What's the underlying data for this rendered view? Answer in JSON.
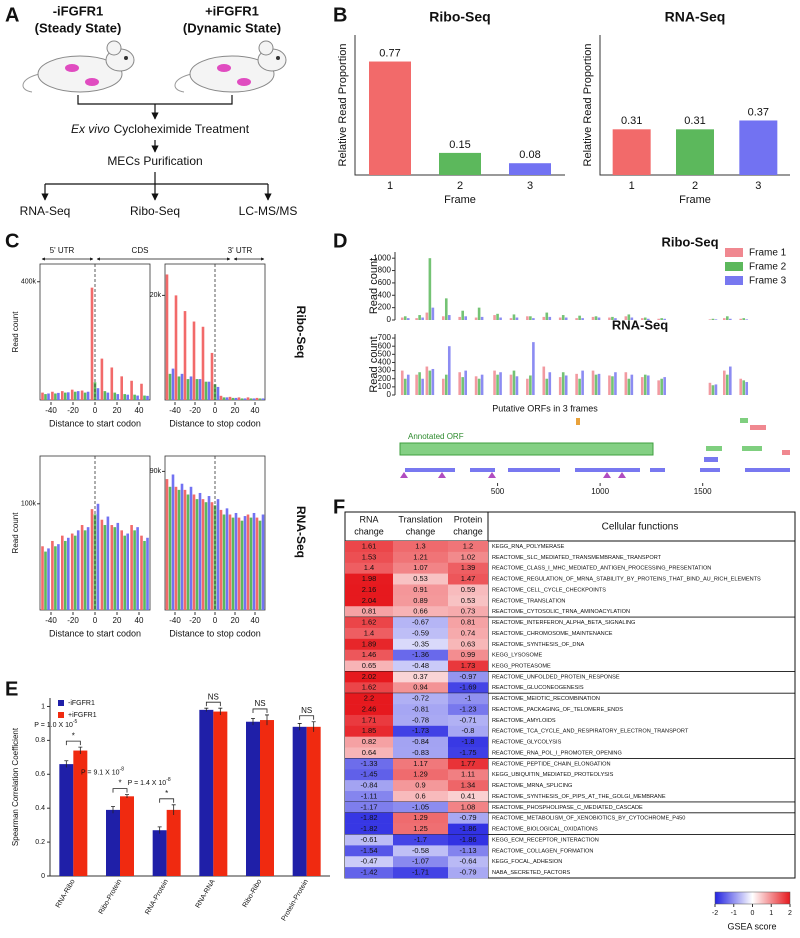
{
  "panel_labels": [
    "A",
    "B",
    "C",
    "D",
    "E",
    "F"
  ],
  "panel_a": {
    "group_1": [
      "-iFGFR1",
      "(Steady State)"
    ],
    "group_2": [
      "+iFGFR1",
      "(Dynamic State)"
    ],
    "treatment": [
      "Ex vivo",
      "Cycloheximide Treatment"
    ],
    "purification": "MECs Purification",
    "assays": [
      "RNA-Seq",
      "Ribo-Seq",
      "LC-MS/MS"
    ]
  },
  "panel_c": {
    "regions": [
      "5' UTR",
      "CDS",
      "3' UTR"
    ],
    "row_labels": [
      "Ribo-Seq",
      "RNA-Seq"
    ]
  },
  "panel_d": {
    "orf_label": "Putative ORFs in 3 frames",
    "annotated_label": "Annotated ORF"
  },
  "chart_data": [
    {
      "type": "bar",
      "title": "Ribo-Seq",
      "ylabel": "Relative Read Proportion",
      "xlabel": "Frame",
      "categories": [
        "1",
        "2",
        "3"
      ],
      "values": [
        0.77,
        0.15,
        0.08
      ],
      "colors": [
        "#f26a6a",
        "#5cb85c",
        "#7272f2"
      ],
      "ylim": [
        0,
        0.95
      ]
    },
    {
      "type": "bar",
      "title": "RNA-Seq",
      "ylabel": "Relative Read Proportion",
      "xlabel": "Frame",
      "categories": [
        "1",
        "2",
        "3"
      ],
      "values": [
        0.31,
        0.31,
        0.37
      ],
      "colors": [
        "#f26a6a",
        "#5cb85c",
        "#7272f2"
      ],
      "ylim": [
        0,
        0.95
      ]
    },
    {
      "type": "frame_bars",
      "ylabel": "Read count",
      "xlabel": "Distance to start codon",
      "xlim": [
        -50,
        50
      ],
      "xticks": [
        -40,
        -20,
        0,
        20,
        40
      ],
      "ylim": [
        0,
        460000
      ],
      "yticks": [
        {
          "value": 400000,
          "label": "400k"
        }
      ],
      "x": [
        -45,
        -36,
        -27,
        -18,
        -9,
        0,
        9,
        18,
        27,
        36,
        45
      ],
      "series": [
        {
          "color": "#f26a6a",
          "values": [
            25000,
            28000,
            30000,
            35000,
            32000,
            380000,
            140000,
            110000,
            80000,
            65000,
            55000
          ]
        },
        {
          "color": "#5cb85c",
          "values": [
            20000,
            22000,
            25000,
            28000,
            25000,
            60000,
            30000,
            25000,
            20000,
            18000,
            15000
          ]
        },
        {
          "color": "#7272f2",
          "values": [
            22000,
            24000,
            26000,
            30000,
            28000,
            40000,
            25000,
            20000,
            18000,
            15000,
            14000
          ]
        }
      ]
    },
    {
      "type": "frame_bars",
      "xlabel": "Distance to stop codon",
      "xlim": [
        -50,
        50
      ],
      "xticks": [
        -40,
        -20,
        0,
        20,
        40
      ],
      "ylim": [
        0,
        26000
      ],
      "yticks": [
        {
          "value": 20000,
          "label": "20k"
        }
      ],
      "x": [
        -45,
        -36,
        -27,
        -18,
        -9,
        0,
        9,
        18,
        27,
        36,
        45
      ],
      "series": [
        {
          "color": "#f26a6a",
          "values": [
            24000,
            20000,
            17000,
            15000,
            14000,
            9000,
            800,
            600,
            500,
            500,
            400
          ]
        },
        {
          "color": "#5cb85c",
          "values": [
            5000,
            4500,
            4000,
            4000,
            3500,
            3000,
            500,
            400,
            300,
            300,
            300
          ]
        },
        {
          "color": "#7272f2",
          "values": [
            6000,
            5000,
            4500,
            4000,
            3500,
            2500,
            500,
            400,
            300,
            300,
            300
          ]
        }
      ]
    },
    {
      "type": "frame_bars",
      "ylabel": "Read count",
      "xlabel": "Distance to start codon",
      "xlim": [
        -50,
        50
      ],
      "xticks": [
        -40,
        -20,
        0,
        20,
        40
      ],
      "ylim": [
        0,
        145000
      ],
      "yticks": [
        {
          "value": 100000,
          "label": "100k"
        }
      ],
      "x": [
        -45,
        -36,
        -27,
        -18,
        -9,
        0,
        9,
        18,
        27,
        36,
        45
      ],
      "series": [
        {
          "color": "#f26a6a",
          "values": [
            60000,
            65000,
            70000,
            72000,
            80000,
            95000,
            85000,
            80000,
            75000,
            80000,
            70000
          ]
        },
        {
          "color": "#5cb85c",
          "values": [
            55000,
            60000,
            65000,
            70000,
            75000,
            90000,
            80000,
            78000,
            70000,
            75000,
            65000
          ]
        },
        {
          "color": "#7272f2",
          "values": [
            58000,
            62000,
            68000,
            75000,
            78000,
            100000,
            88000,
            82000,
            72000,
            78000,
            68000
          ]
        }
      ]
    },
    {
      "type": "frame_bars",
      "xlabel": "Distance to stop codon",
      "xlim": [
        -50,
        50
      ],
      "xticks": [
        -40,
        -20,
        0,
        20,
        40
      ],
      "ylim": [
        0,
        100000
      ],
      "yticks": [
        {
          "value": 90000,
          "label": "90k"
        }
      ],
      "x": [
        -45,
        -36,
        -27,
        -18,
        -9,
        0,
        9,
        18,
        27,
        36,
        45
      ],
      "series": [
        {
          "color": "#f26a6a",
          "values": [
            85000,
            80000,
            78000,
            75000,
            72000,
            70000,
            65000,
            62000,
            60000,
            62000,
            60000
          ]
        },
        {
          "color": "#5cb85c",
          "values": [
            80000,
            78000,
            75000,
            72000,
            70000,
            68000,
            62000,
            60000,
            58000,
            60000,
            58000
          ]
        },
        {
          "color": "#7272f2",
          "values": [
            88000,
            82000,
            80000,
            76000,
            74000,
            72000,
            66000,
            63000,
            61000,
            63000,
            62000
          ]
        }
      ]
    },
    {
      "type": "track",
      "title": "Ribo-Seq",
      "ylabel": "Read count",
      "legend": "upper right",
      "xlim": [
        0,
        1950
      ],
      "ylim": [
        0,
        1100
      ],
      "yticks": [
        0,
        200,
        400,
        600,
        800,
        1000
      ],
      "x": [
        50,
        120,
        170,
        250,
        330,
        410,
        500,
        580,
        660,
        740,
        820,
        900,
        980,
        1060,
        1140,
        1220,
        1300,
        1550,
        1620,
        1700
      ],
      "series": [
        {
          "name": "Frame 1",
          "color": "#f08890",
          "values": [
            40,
            30,
            120,
            60,
            50,
            40,
            80,
            30,
            60,
            50,
            40,
            30,
            50,
            40,
            60,
            30,
            20,
            10,
            30,
            20
          ]
        },
        {
          "name": "Frame 2",
          "color": "#5cb85c",
          "values": [
            60,
            80,
            1000,
            350,
            150,
            200,
            100,
            90,
            60,
            120,
            80,
            70,
            60,
            50,
            90,
            40,
            30,
            20,
            60,
            30
          ]
        },
        {
          "name": "Frame 3",
          "color": "#7878f0",
          "values": [
            30,
            40,
            200,
            80,
            60,
            50,
            40,
            40,
            30,
            50,
            40,
            30,
            40,
            30,
            40,
            20,
            20,
            10,
            20,
            10
          ]
        }
      ]
    },
    {
      "type": "track",
      "title": "RNA-Seq",
      "ylabel": "Read count",
      "xlim": [
        0,
        1950
      ],
      "xticks": [
        500,
        1000,
        1500
      ],
      "ylim": [
        0,
        750
      ],
      "yticks": [
        0,
        100,
        200,
        300,
        400,
        500,
        600,
        700
      ],
      "x": [
        50,
        120,
        170,
        250,
        330,
        410,
        500,
        580,
        660,
        740,
        820,
        900,
        980,
        1060,
        1140,
        1220,
        1300,
        1550,
        1620,
        1700
      ],
      "series": [
        {
          "color": "#f08890",
          "values": [
            300,
            250,
            350,
            200,
            280,
            230,
            300,
            250,
            200,
            350,
            220,
            260,
            300,
            240,
            280,
            220,
            180,
            150,
            300,
            200
          ]
        },
        {
          "color": "#5cb85c",
          "values": [
            200,
            280,
            300,
            250,
            220,
            200,
            250,
            300,
            240,
            200,
            280,
            200,
            250,
            230,
            200,
            250,
            200,
            120,
            250,
            180
          ]
        },
        {
          "color": "#7878f0",
          "values": [
            250,
            200,
            320,
            600,
            300,
            250,
            280,
            230,
            650,
            280,
            240,
            300,
            260,
            280,
            250,
            240,
            220,
            130,
            350,
            160
          ]
        }
      ]
    },
    {
      "type": "grouped_bar",
      "ylabel": "Spearman Correlation Coefficient",
      "categories": [
        "RNA-Ribo",
        "Ribo-Protein",
        "RNA-Protein",
        "RNA-RNA",
        "Ribo-Ribo",
        "Protein-Protein"
      ],
      "ylim": [
        0,
        1.05
      ],
      "yticks": [
        0,
        0.2,
        0.4,
        0.6,
        0.8,
        1
      ],
      "series": [
        {
          "name": "-iFGFR1",
          "color": "#1f1fa8",
          "values": [
            0.66,
            0.39,
            0.27,
            0.98,
            0.91,
            0.88
          ],
          "errors": [
            0.02,
            0.02,
            0.02,
            0.01,
            0.02,
            0.02
          ]
        },
        {
          "name": "+iFGFR1",
          "color": "#f02a10",
          "values": [
            0.74,
            0.47,
            0.39,
            0.97,
            0.92,
            0.88
          ],
          "errors": [
            0.02,
            0.01,
            0.03,
            0.02,
            0.03,
            0.03
          ]
        }
      ],
      "significance": [
        "*",
        "*",
        "*",
        "NS",
        "NS",
        "NS"
      ],
      "p_values": [
        [
          "P = 1.0 X 10",
          "-5"
        ],
        [
          "P = 9.1 X 10",
          "-8"
        ],
        [
          "P = 1.4 X 10",
          "-8"
        ]
      ]
    }
  ],
  "panel_f": {
    "headers": [
      [
        "RNA",
        "change"
      ],
      [
        "Translation",
        "change"
      ],
      [
        "Protein",
        "change"
      ],
      "Cellular functions"
    ],
    "groups": [
      [
        [
          1.61,
          1.3,
          1.2,
          "KEGG_RNA_POLYMERASE"
        ],
        [
          1.53,
          1.21,
          1.02,
          "REACTOME_SLC_MEDIATED_TRANSMEMBRANE_TRANSPORT"
        ],
        [
          1.4,
          1.07,
          1.39,
          "REACTOME_CLASS_I_MHC_MEDIATED_ANTIGEN_PROCESSING_PRESENTATION"
        ],
        [
          1.98,
          0.53,
          1.47,
          "REACTOME_REGULATION_OF_MRNA_STABILITY_BY_PROTEINS_THAT_BIND_AU_RICH_ELEMENTS"
        ],
        [
          2.16,
          0.91,
          0.59,
          "REACTOME_CELL_CYCLE_CHECKPOINTS"
        ],
        [
          2.04,
          0.89,
          0.53,
          "REACTOME_TRANSLATION"
        ],
        [
          0.81,
          0.66,
          0.73,
          "REACTOME_CYTOSOLIC_TRNA_AMINOACYLATION"
        ]
      ],
      [
        [
          1.62,
          -0.67,
          0.81,
          "REACTOME_INTERFERON_ALPHA_BETA_SIGNALING"
        ],
        [
          1.4,
          -0.59,
          0.74,
          "REACTOME_CHROMOSOME_MAINTENANCE"
        ],
        [
          1.89,
          -0.35,
          0.63,
          "REACTOME_SYNTHESIS_OF_DNA"
        ],
        [
          1.46,
          -1.36,
          0.99,
          "KEGG_LYSOSOME"
        ],
        [
          0.65,
          -0.48,
          1.73,
          "KEGG_PROTEASOME"
        ]
      ],
      [
        [
          2.02,
          0.37,
          -0.97,
          "REACTOME_UNFOLDED_PROTEIN_RESPONSE"
        ],
        [
          1.62,
          0.94,
          -1.69,
          "REACTOME_GLUCONEOGENESIS"
        ]
      ],
      [
        [
          2.2,
          -0.72,
          -1,
          "REACTOME_MEIOTIC_RECOMBINATION"
        ],
        [
          2.46,
          -0.81,
          -1.23,
          "REACTOME_PACKAGING_OF_TELOMERE_ENDS"
        ],
        [
          1.71,
          -0.78,
          -0.71,
          "REACTOME_AMYLOIDS"
        ],
        [
          1.85,
          -1.73,
          -0.8,
          "REACTOME_TCA_CYCLE_AND_RESPIRATORY_ELECTRON_TRANSPORT"
        ],
        [
          0.82,
          -0.84,
          -1.8,
          "REACTOME_GLYCOLYSIS"
        ],
        [
          0.64,
          -0.83,
          -1.75,
          "REACTOME_RNA_POL_I_PROMOTER_OPENING"
        ]
      ],
      [
        [
          -1.33,
          1.17,
          1.77,
          "REACTOME_PEPTIDE_CHAIN_ELONGATION"
        ],
        [
          -1.45,
          1.29,
          1.11,
          "KEGG_UBIQUITIN_MEDIATED_PROTEOLYSIS"
        ],
        [
          -0.84,
          0.9,
          1.34,
          "REACTOME_MRNA_SPLICING"
        ],
        [
          -1.11,
          0.6,
          0.41,
          "REACTOME_SYNTHESIS_OF_PIPS_AT_THE_GOLGI_MEMBRANE"
        ]
      ],
      [
        [
          -1.17,
          -1.05,
          1.08,
          "REACTOME_PHOSPHOLIPASE_C_MEDIATED_CASCADE"
        ]
      ],
      [
        [
          -1.82,
          1.29,
          -0.79,
          "REACTOME_METABOLISM_OF_XENOBIOTICS_BY_CYTOCHROME_P450"
        ],
        [
          -1.82,
          1.25,
          -1.86,
          "REACTOME_BIOLOGICAL_OXIDATIONS"
        ]
      ],
      [
        [
          -0.61,
          -1.7,
          -1.86,
          "KEGG_ECM_RECEPTOR_INTERACTION"
        ],
        [
          -1.54,
          -0.58,
          -1.13,
          "REACTOME_COLLAGEN_FORMATION"
        ],
        [
          -0.47,
          -1.07,
          -0.64,
          "KEGG_FOCAL_ADHESION"
        ],
        [
          -1.42,
          -1.71,
          -0.79,
          "NABA_SECRETED_FACTORS"
        ]
      ]
    ],
    "colorbar": {
      "label": "GSEA score",
      "lim": [
        -2,
        2
      ],
      "ticks": [
        -2,
        -1,
        0,
        1,
        2
      ]
    }
  }
}
